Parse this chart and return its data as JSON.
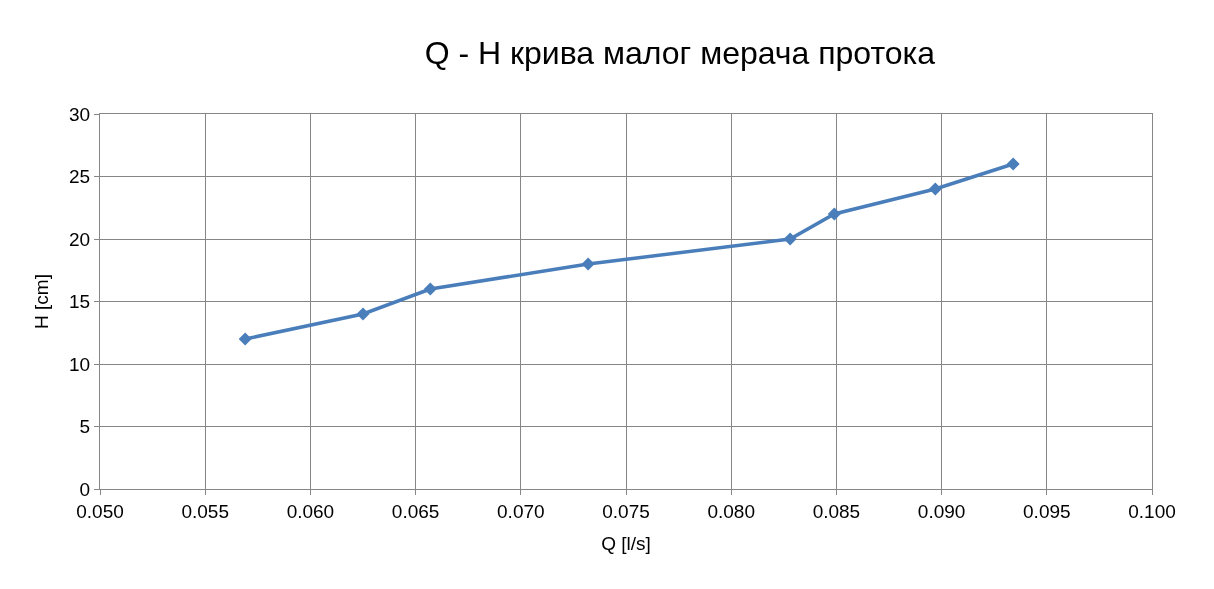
{
  "chart_data": {
    "type": "line",
    "title": "Q - H крива малог мерача протока",
    "xlabel": "Q [l/s]",
    "ylabel": "H [cm]",
    "x": [
      0.0569,
      0.0625,
      0.0657,
      0.0732,
      0.0828,
      0.0849,
      0.0897,
      0.0934
    ],
    "series": [
      {
        "color": "#4a7ebb",
        "values": [
          12,
          14,
          16,
          18,
          20,
          22,
          24,
          26
        ]
      }
    ],
    "xlim": [
      0.05,
      0.1
    ],
    "xticks": [
      {
        "value": 0.05,
        "label": "0.050"
      },
      {
        "value": 0.055,
        "label": "0.055"
      },
      {
        "value": 0.06,
        "label": "0.060"
      },
      {
        "value": 0.065,
        "label": "0.065"
      },
      {
        "value": 0.07,
        "label": "0.070"
      },
      {
        "value": 0.075,
        "label": "0.075"
      },
      {
        "value": 0.08,
        "label": "0.080"
      },
      {
        "value": 0.085,
        "label": "0.085"
      },
      {
        "value": 0.09,
        "label": "0.090"
      },
      {
        "value": 0.095,
        "label": "0.095"
      },
      {
        "value": 0.1,
        "label": "0.100"
      }
    ],
    "ylim": [
      0,
      30
    ],
    "yticks": [
      0,
      5,
      10,
      15,
      20,
      25,
      30
    ],
    "grid": true,
    "marker": "diamond",
    "line_style": "solid"
  }
}
